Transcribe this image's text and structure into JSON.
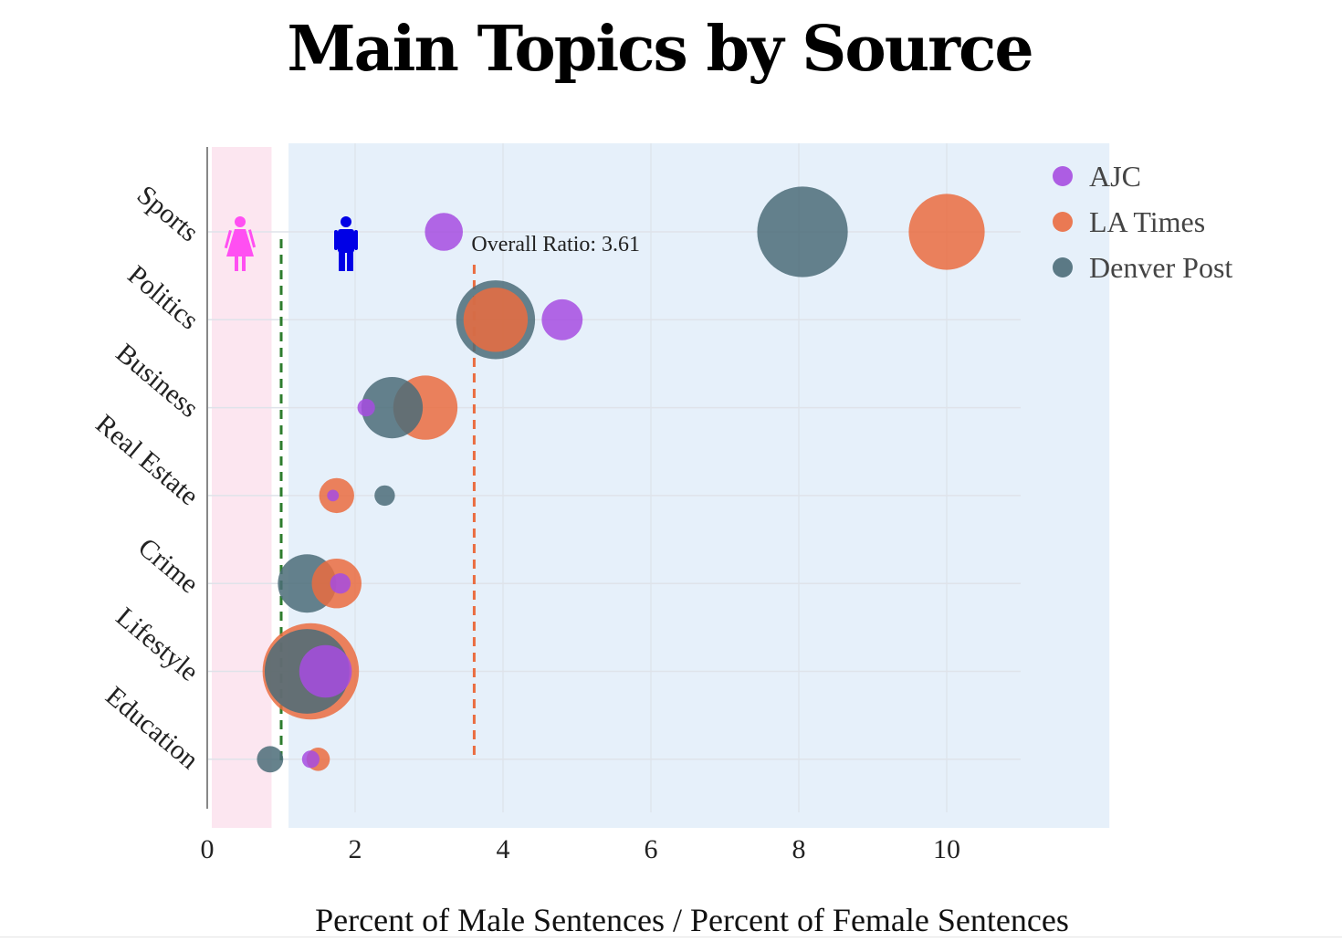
{
  "chart_data": {
    "type": "scatter",
    "title": "Main Topics by Source",
    "xlabel": "Percent of Male Sentences / Percent of Female Sentences",
    "xlim": [
      0,
      12.2
    ],
    "x_ticks": [
      "0",
      "2",
      "4",
      "6",
      "8",
      "10"
    ],
    "x_tick_values": [
      0,
      2,
      4,
      6,
      8,
      10
    ],
    "categories": [
      "Sports",
      "Politics",
      "Business",
      "Real Estate",
      "Crime",
      "Lifestyle",
      "Education"
    ],
    "series": [
      {
        "name": "AJC",
        "color": "#a64ce0",
        "points": [
          {
            "topic": "Sports",
            "x": 3.2,
            "size": 1.3
          },
          {
            "topic": "Politics",
            "x": 4.8,
            "size": 1.4
          },
          {
            "topic": "Business",
            "x": 2.15,
            "size": 0.6
          },
          {
            "topic": "Real Estate",
            "x": 1.7,
            "size": 0.4
          },
          {
            "topic": "Crime",
            "x": 1.8,
            "size": 0.7
          },
          {
            "topic": "Lifestyle",
            "x": 1.6,
            "size": 1.8
          },
          {
            "topic": "Education",
            "x": 1.4,
            "size": 0.6
          }
        ]
      },
      {
        "name": "LA Times",
        "color": "#ea6c40",
        "points": [
          {
            "topic": "Sports",
            "x": 10.0,
            "size": 2.6
          },
          {
            "topic": "Politics",
            "x": 3.9,
            "size": 2.2
          },
          {
            "topic": "Business",
            "x": 2.95,
            "size": 2.2
          },
          {
            "topic": "Real Estate",
            "x": 1.75,
            "size": 1.2
          },
          {
            "topic": "Crime",
            "x": 1.75,
            "size": 1.7
          },
          {
            "topic": "Lifestyle",
            "x": 1.4,
            "size": 3.3
          },
          {
            "topic": "Education",
            "x": 1.5,
            "size": 0.8
          }
        ]
      },
      {
        "name": "Denver Post",
        "color": "#4b6c78",
        "points": [
          {
            "topic": "Sports",
            "x": 8.05,
            "size": 3.1
          },
          {
            "topic": "Politics",
            "x": 3.9,
            "size": 2.7
          },
          {
            "topic": "Business",
            "x": 2.5,
            "size": 2.1
          },
          {
            "topic": "Real Estate",
            "x": 2.4,
            "size": 0.7
          },
          {
            "topic": "Crime",
            "x": 1.35,
            "size": 2.0
          },
          {
            "topic": "Lifestyle",
            "x": 1.35,
            "size": 2.9
          },
          {
            "topic": "Education",
            "x": 0.85,
            "size": 0.9
          }
        ]
      }
    ],
    "reference_lines": [
      {
        "x": 1.0,
        "style": "dashed",
        "color": "#2e7d2e"
      },
      {
        "x": 3.61,
        "style": "dashed",
        "color": "#ea6c40",
        "label": "Overall Ratio: 3.61"
      }
    ],
    "female_region": {
      "from": 0,
      "to": 0.87,
      "color": "#fce6f0"
    },
    "male_region": {
      "from": 1.1,
      "to": 12.2,
      "color": "#e6f0fa"
    },
    "legend_position": "top-right",
    "grid": true,
    "icons": {
      "female": "female-figure-icon",
      "female_color": "#ff4ff2",
      "male": "male-figure-icon",
      "male_color": "#0000e6"
    }
  }
}
